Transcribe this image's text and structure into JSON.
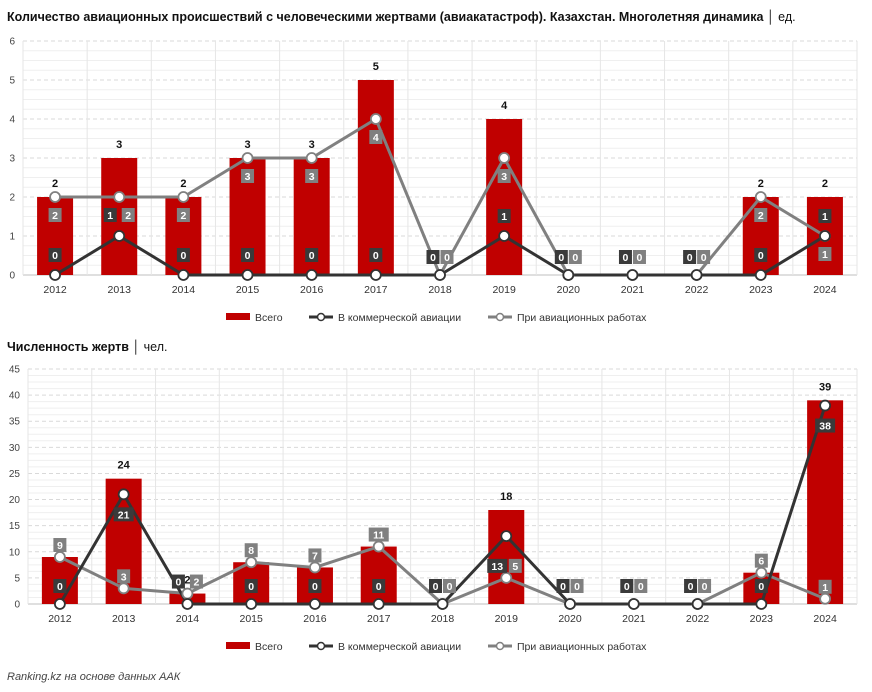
{
  "chart_data": [
    {
      "type": "bar",
      "title": "Количество авиационных происшествий с человеческими жертвами (авиакатастроф). Казахстан. Многолетняя динамика",
      "unit": "ед.",
      "categories": [
        "2012",
        "2013",
        "2014",
        "2015",
        "2016",
        "2017",
        "2018",
        "2019",
        "2020",
        "2021",
        "2022",
        "2023",
        "2024"
      ],
      "ylim": [
        0,
        6
      ],
      "yticks": [
        "0",
        "1",
        "2",
        "3",
        "4",
        "5",
        "6"
      ],
      "grid": true,
      "legend_position": "bottom-center",
      "series": [
        {
          "name": "Всего",
          "type": "bar",
          "color": "#c00000",
          "values": [
            2,
            3,
            2,
            3,
            3,
            5,
            0,
            4,
            0,
            0,
            0,
            2,
            2
          ]
        },
        {
          "name": "В коммерческой авиации",
          "type": "line",
          "color": "#333333",
          "values": [
            0,
            1,
            0,
            0,
            0,
            0,
            0,
            1,
            0,
            0,
            0,
            0,
            1
          ]
        },
        {
          "name": "При авиационных работах",
          "type": "line",
          "color": "#808080",
          "values": [
            2,
            2,
            2,
            3,
            3,
            4,
            0,
            3,
            0,
            0,
            0,
            2,
            1
          ]
        }
      ]
    },
    {
      "type": "bar",
      "title": "Численность жертв",
      "unit": "чел.",
      "categories": [
        "2012",
        "2013",
        "2014",
        "2015",
        "2016",
        "2017",
        "2018",
        "2019",
        "2020",
        "2021",
        "2022",
        "2023",
        "2024"
      ],
      "ylim": [
        0,
        45
      ],
      "yticks": [
        "0",
        "5",
        "10",
        "15",
        "20",
        "25",
        "30",
        "35",
        "40",
        "45"
      ],
      "grid": true,
      "legend_position": "bottom-center",
      "series": [
        {
          "name": "Всего",
          "type": "bar",
          "color": "#c00000",
          "values": [
            9,
            24,
            2,
            8,
            7,
            11,
            0,
            18,
            0,
            0,
            0,
            6,
            39
          ]
        },
        {
          "name": "В коммерческой авиации",
          "type": "line",
          "color": "#333333",
          "values": [
            0,
            21,
            0,
            0,
            0,
            0,
            0,
            13,
            0,
            0,
            0,
            0,
            38
          ]
        },
        {
          "name": "При авиационных работах",
          "type": "line",
          "color": "#808080",
          "values": [
            9,
            3,
            2,
            8,
            7,
            11,
            0,
            5,
            0,
            0,
            0,
            6,
            1
          ]
        }
      ]
    }
  ],
  "source": "Ranking.kz на основе данных ААК"
}
